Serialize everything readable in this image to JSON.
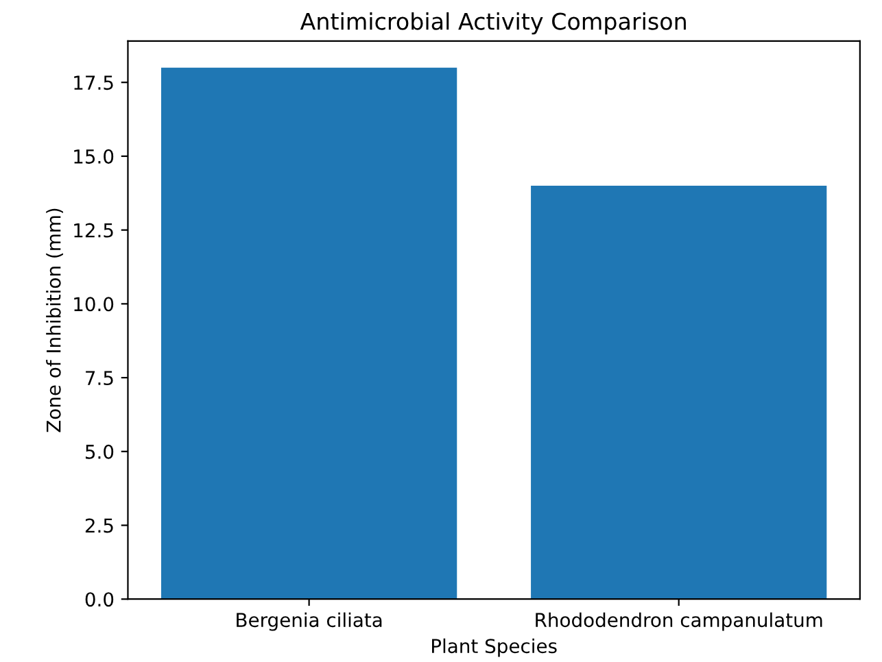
{
  "chart_data": {
    "type": "bar",
    "title": "Antimicrobial Activity Comparison",
    "xlabel": "Plant Species",
    "ylabel": "Zone of Inhibition (mm)",
    "categories": [
      "Bergenia ciliata",
      "Rhododendron campanulatum"
    ],
    "values": [
      18,
      14
    ],
    "color": "#1f77b4",
    "ylim": [
      0,
      18.9
    ],
    "yticks": [
      {
        "value": 0,
        "label": "0.0"
      },
      {
        "value": 2.5,
        "label": "2.5"
      },
      {
        "value": 5,
        "label": "5.0"
      },
      {
        "value": 7.5,
        "label": "7.5"
      },
      {
        "value": 10,
        "label": "10.0"
      },
      {
        "value": 12.5,
        "label": "12.5"
      },
      {
        "value": 15,
        "label": "15.0"
      },
      {
        "value": 17.5,
        "label": "17.5"
      }
    ],
    "grid": false
  }
}
